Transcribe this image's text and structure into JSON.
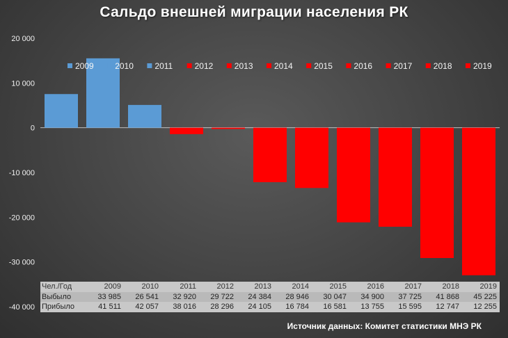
{
  "title": "Сальдо внешней миграции населения РК",
  "colors": {
    "positive": "#5b9bd5",
    "negative": "#ff0000",
    "axis": "#bfbfbf",
    "text": "#ffffff"
  },
  "chart_data": {
    "type": "bar",
    "title": "Сальдо внешней миграции населения РК",
    "categories": [
      "2009",
      "2010",
      "2011",
      "2012",
      "2013",
      "2014",
      "2015",
      "2016",
      "2017",
      "2018",
      "2019"
    ],
    "values": [
      7526,
      15516,
      5096,
      -1426,
      -279,
      -12162,
      -13466,
      -21145,
      -22130,
      -29121,
      -32970
    ],
    "ylim": [
      -40000,
      20000
    ],
    "yticks": [
      20000,
      10000,
      0,
      -10000,
      -20000,
      -30000,
      -40000
    ],
    "ytick_labels": [
      "20 000",
      "10 000",
      "0",
      "-10 000",
      "-20 000",
      "-30 000",
      "-40 000"
    ],
    "legend_position": "top",
    "xlabel": "",
    "ylabel": ""
  },
  "table": {
    "header_label": "Чел./Год",
    "years": [
      "2009",
      "2010",
      "2011",
      "2012",
      "2013",
      "2014",
      "2015",
      "2016",
      "2017",
      "2018",
      "2019"
    ],
    "rows": [
      {
        "label": "Выбыло",
        "values": [
          "33 985",
          "26 541",
          "32 920",
          "29 722",
          "24 384",
          "28 946",
          "30 047",
          "34 900",
          "37 725",
          "41 868",
          "45 225"
        ]
      },
      {
        "label": "Прибыло",
        "values": [
          "41 511",
          "42 057",
          "38 016",
          "28 296",
          "24 105",
          "16 784",
          "16 581",
          "13 755",
          "15 595",
          "12 747",
          "12 255"
        ]
      }
    ]
  },
  "source": "Источник данных: Комитет статистики МНЭ РК"
}
